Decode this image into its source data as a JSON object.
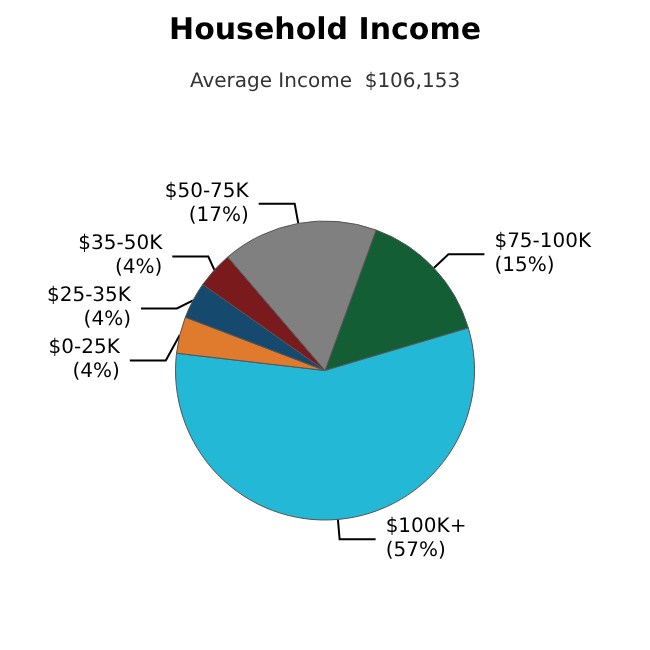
{
  "chart_data": {
    "type": "pie",
    "title": "Household Income",
    "subtitle": "Average Income  $106,153",
    "categories": [
      "$75-100K",
      "$100K+",
      "$0-25K",
      "$25-35K",
      "$35-50K",
      "$50-75K"
    ],
    "values": [
      15,
      57,
      4,
      4,
      4,
      17
    ],
    "colors": [
      "#145e35",
      "#22b8d6",
      "#e07a2c",
      "#154a6e",
      "#7a1a1c",
      "#808080"
    ],
    "value_labels": [
      "(15%)",
      "(57%)",
      "(4%)",
      "(4%)",
      "(4%)",
      "(17%)"
    ],
    "legend": false
  }
}
